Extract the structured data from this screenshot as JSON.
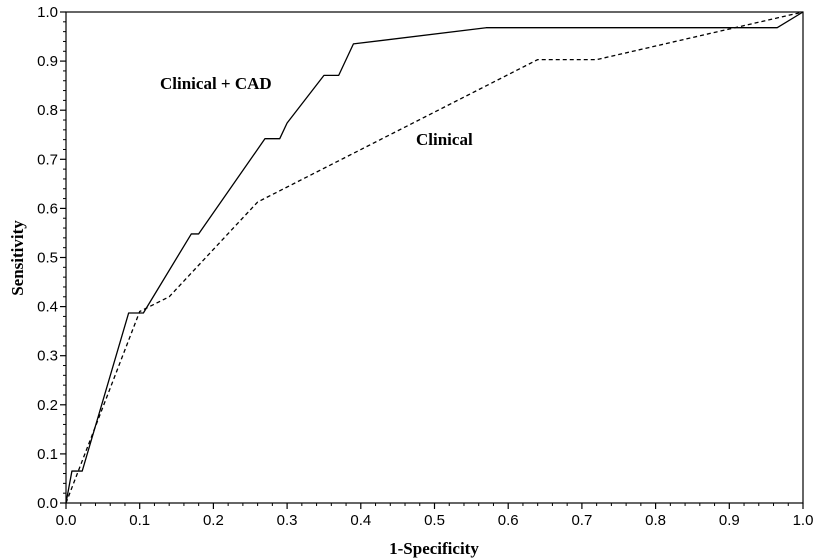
{
  "chart_data": {
    "type": "line",
    "title": "",
    "xlabel": "1-Specificity",
    "ylabel": "Sensitivity",
    "xlim": [
      0.0,
      1.0
    ],
    "ylim": [
      0.0,
      1.0
    ],
    "x_ticks": [
      "0.0",
      "0.1",
      "0.2",
      "0.3",
      "0.4",
      "0.5",
      "0.6",
      "0.7",
      "0.8",
      "0.9",
      "1.0"
    ],
    "y_ticks": [
      "0.0",
      "0.1",
      "0.2",
      "0.3",
      "0.4",
      "0.5",
      "0.6",
      "0.7",
      "0.8",
      "0.9",
      "1.0"
    ],
    "grid": false,
    "legend": "none",
    "series": [
      {
        "name": "Clinical + CAD",
        "line_style": "solid",
        "x": [
          0.0,
          0.008,
          0.008,
          0.022,
          0.022,
          0.085,
          0.1,
          0.105,
          0.17,
          0.175,
          0.18,
          0.27,
          0.28,
          0.29,
          0.3,
          0.35,
          0.365,
          0.37,
          0.39,
          0.57,
          0.96,
          0.965,
          1.0
        ],
        "y": [
          0.0,
          0.065,
          0.065,
          0.065,
          0.065,
          0.387,
          0.387,
          0.387,
          0.548,
          0.548,
          0.548,
          0.742,
          0.742,
          0.742,
          0.774,
          0.871,
          0.871,
          0.871,
          0.935,
          0.968,
          0.968,
          0.968,
          1.0
        ]
      },
      {
        "name": "Clinical",
        "line_style": "dashed",
        "x": [
          0.0,
          0.1,
          0.14,
          0.26,
          0.64,
          0.72,
          1.0
        ],
        "y": [
          0.0,
          0.39,
          0.42,
          0.613,
          0.903,
          0.903,
          1.0
        ]
      }
    ],
    "annotations": [
      "Clinical + CAD",
      "Clinical"
    ]
  }
}
